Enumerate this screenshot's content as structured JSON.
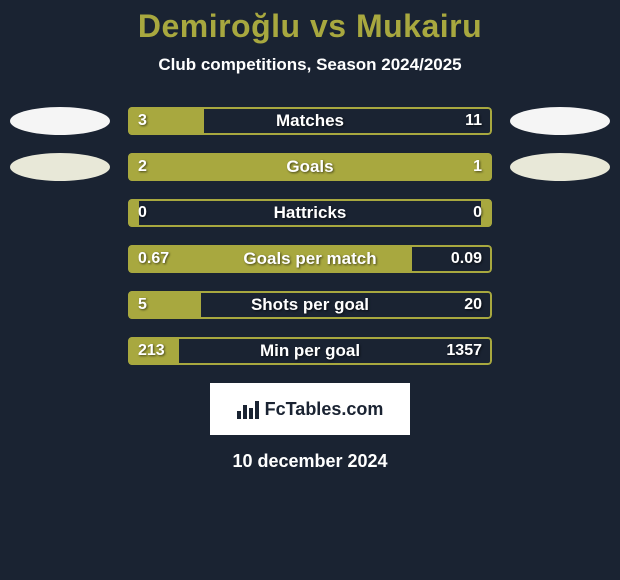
{
  "title": "Demiroğlu vs Mukairu",
  "subtitle": "Club competitions, Season 2024/2025",
  "colors": {
    "background": "#1a2332",
    "accent": "#a8a83f",
    "text": "#ffffff",
    "ellipse_white": "#f5f5f5",
    "ellipse_offwhite": "#e8e8d8",
    "logo_bg": "#ffffff",
    "logo_text": "#1a2332"
  },
  "typography": {
    "title_fontsize": 32,
    "subtitle_fontsize": 17,
    "label_fontsize": 17,
    "value_fontsize": 16,
    "date_fontsize": 18,
    "logo_fontsize": 18
  },
  "rows": [
    {
      "label": "Matches",
      "left_val": "3",
      "right_val": "11",
      "left_pct": 21,
      "right_pct": 0,
      "show_ellipse": true,
      "ellipse_tone": "white"
    },
    {
      "label": "Goals",
      "left_val": "2",
      "right_val": "1",
      "left_pct": 67,
      "right_pct": 33,
      "show_ellipse": true,
      "ellipse_tone": "offwhite"
    },
    {
      "label": "Hattricks",
      "left_val": "0",
      "right_val": "0",
      "left_pct": 3,
      "right_pct": 3,
      "show_ellipse": false,
      "ellipse_tone": "white"
    },
    {
      "label": "Goals per match",
      "left_val": "0.67",
      "right_val": "0.09",
      "left_pct": 78,
      "right_pct": 0,
      "show_ellipse": false,
      "ellipse_tone": "white"
    },
    {
      "label": "Shots per goal",
      "left_val": "5",
      "right_val": "20",
      "left_pct": 20,
      "right_pct": 0,
      "show_ellipse": false,
      "ellipse_tone": "white"
    },
    {
      "label": "Min per goal",
      "left_val": "213",
      "right_val": "1357",
      "left_pct": 14,
      "right_pct": 0,
      "show_ellipse": false,
      "ellipse_tone": "white"
    }
  ],
  "footer": {
    "logo_text": "FcTables.com",
    "date": "10 december 2024"
  }
}
